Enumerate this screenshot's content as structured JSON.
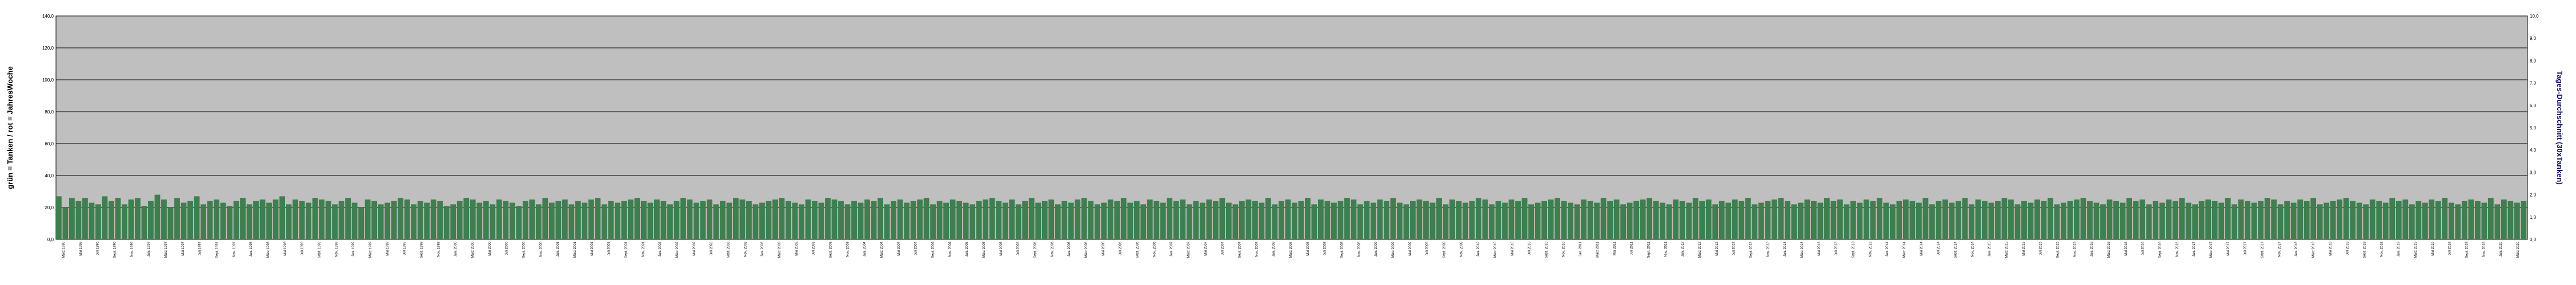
{
  "chart_data": {
    "type": "bar",
    "ylabel": "grün = Tanken / rot = JahresWoche",
    "y2label": "Tages-Durchschnitt (30xTanken)",
    "ylim": [
      0,
      140
    ],
    "y_ticks": [
      "0,0",
      "20,0",
      "40,0",
      "60,0",
      "80,0",
      "100,0",
      "120,0",
      "140,0"
    ],
    "y2lim": [
      0,
      10
    ],
    "y2_ticks": [
      "0,0",
      "1,0",
      "2,0",
      "3,0",
      "4,0",
      "5,0",
      "6,0",
      "7,0",
      "8,0",
      "9,0",
      "10,0"
    ],
    "grid": true,
    "colors": {
      "plot_bg": "#bfbfbf",
      "bars": "#3f7f4f",
      "weekly_line": "#d02010",
      "average_line": "#0a0a5a",
      "grid": "#000000"
    },
    "x_ticks": [
      "März 1996",
      "Mai 1996",
      "Juli 1996",
      "Sept. 1996",
      "Nov. 1996",
      "Jan. 1997",
      "März 1997",
      "Mai 1997",
      "Juli 1997",
      "Sept. 1997",
      "Nov. 1997",
      "Jan. 1998",
      "März 1998",
      "Mai 1998",
      "Juli 1998",
      "Sept. 1998",
      "Nov. 1998",
      "Jan. 1999",
      "März 1999",
      "Mai 1999",
      "Juli 1999",
      "Sept. 1999",
      "Nov. 1999",
      "Jan. 2000",
      "März 2000",
      "Mai 2000",
      "Juli 2000",
      "Sept. 2000",
      "Nov. 2000",
      "Jan. 2001",
      "März 2001",
      "Mai 2001",
      "Juli 2001",
      "Sept. 2001",
      "Nov. 2001",
      "Jan. 2002",
      "März 2002",
      "Mai 2002",
      "Juli 2002",
      "Sept. 2002",
      "Nov. 2002",
      "Jan. 2003",
      "März 2003",
      "Mai 2003",
      "Juli 2003",
      "Sept. 2003",
      "Nov. 2003",
      "Jan. 2004",
      "März 2004",
      "Mai 2004",
      "Juli 2004",
      "Sept. 2004",
      "Nov. 2004",
      "Jan. 2005",
      "März 2005",
      "Mai 2005",
      "Juli 2005",
      "Sept. 2005",
      "Nov. 2005",
      "Jan. 2006",
      "März 2006",
      "Mai 2006",
      "Juli 2006",
      "Sept. 2006",
      "Nov. 2006",
      "Jan. 2007",
      "März 2007",
      "Mai 2007",
      "Juli 2007",
      "Sept. 2007",
      "Nov. 2007",
      "Jan. 2008",
      "März 2008",
      "Mai 2008",
      "Juli 2008",
      "Sept. 2008",
      "Nov. 2008",
      "Jan. 2009",
      "März 2009",
      "Mai 2009",
      "Juli 2009",
      "Sept. 2009",
      "Nov. 2009",
      "Jan. 2010",
      "März 2010",
      "Mai 2010",
      "Juli 2010",
      "Sept. 2010",
      "Nov. 2010",
      "Jan. 2011",
      "März 2011",
      "Mai 2011",
      "Juli 2011",
      "Sept. 2011",
      "Nov. 2011",
      "Jan. 2012",
      "März 2012",
      "Mai 2012",
      "Juli 2012",
      "Sept. 2012",
      "Nov. 2012",
      "Jan. 2013",
      "März 2013",
      "Mai 2013",
      "Juli 2013",
      "Sept. 2013",
      "Nov. 2013",
      "Jan. 2014",
      "März 2014",
      "Mai 2014",
      "Juli 2014",
      "Sept. 2014",
      "Nov. 2014",
      "Jan. 2015",
      "März 2015",
      "Mai 2015",
      "Juli 2015",
      "Sept. 2015",
      "Nov. 2015",
      "Jan. 2016",
      "März 2016",
      "Mai 2016",
      "Juli 2016",
      "Sept. 2016",
      "Nov. 2016",
      "Jan. 2017",
      "März 2017",
      "Mai 2017",
      "Juli 2017",
      "Sept. 2017",
      "Nov. 2017",
      "Jan. 2018",
      "März 2018",
      "Mai 2018",
      "Juli 2018",
      "Sept. 2018",
      "Nov. 2018",
      "Jan. 2019",
      "März 2019",
      "Mai 2019",
      "Juli 2019",
      "Sept. 2019",
      "Nov. 2019",
      "Jan. 2020",
      "März 2020"
    ],
    "series": [
      {
        "kind": "bar",
        "axis": "left",
        "values": [
          27,
          20,
          26,
          24,
          26,
          23,
          22,
          27,
          24,
          26,
          22,
          25,
          26,
          21,
          24,
          28,
          25,
          20,
          26,
          23,
          24,
          27,
          22,
          24,
          25,
          23,
          21,
          24,
          26,
          22,
          24,
          25,
          23,
          25,
          27,
          22,
          25,
          24,
          23,
          26,
          25,
          24,
          22,
          24,
          26,
          23,
          20,
          25,
          24,
          22,
          23,
          24,
          26,
          25,
          22,
          24,
          23,
          25,
          24,
          21,
          22,
          24,
          26,
          25,
          23,
          24,
          22,
          25,
          24,
          23,
          21,
          24,
          25,
          22,
          26,
          23,
          24,
          25,
          22,
          24,
          23,
          25,
          26,
          22,
          24,
          23,
          24,
          25,
          26,
          24,
          23,
          25,
          24,
          22,
          24,
          26,
          25,
          23,
          24,
          25,
          22,
          24,
          23,
          26,
          25,
          24,
          22,
          23,
          24,
          25,
          26,
          24,
          23,
          22,
          25,
          24,
          23,
          26,
          25,
          24,
          22,
          24,
          23,
          25,
          24,
          26,
          22,
          24,
          25,
          23,
          24,
          25,
          26,
          22,
          24,
          23,
          25,
          24,
          23,
          22,
          24,
          25,
          26,
          24,
          23,
          25,
          22,
          24,
          26,
          23,
          24,
          25,
          22,
          24,
          23,
          25,
          26,
          24,
          22,
          23,
          25,
          24,
          26,
          23,
          24,
          22,
          25,
          24,
          23,
          26,
          24,
          25,
          22,
          24,
          23,
          25,
          24,
          26,
          23,
          22,
          24,
          25,
          24,
          23,
          26,
          22,
          24,
          25,
          23,
          24,
          26,
          22,
          25,
          24,
          23,
          24,
          26,
          25,
          22,
          24,
          23,
          25,
          24,
          26,
          23,
          22,
          24,
          25,
          24,
          23,
          26,
          22,
          25,
          24,
          23,
          24,
          26,
          25,
          22,
          24,
          23,
          25,
          24,
          26,
          22,
          23,
          24,
          25,
          26,
          24,
          23,
          22,
          25,
          24,
          23,
          26,
          24,
          25,
          22,
          23,
          24,
          25,
          26,
          24,
          23,
          22,
          25,
          24,
          23,
          26,
          24,
          25,
          22,
          24,
          23,
          25,
          24,
          26,
          22,
          23,
          24,
          25,
          26,
          24,
          22,
          23,
          25,
          24,
          23,
          26,
          24,
          25,
          22,
          24,
          23,
          25,
          24,
          26,
          23,
          22,
          24,
          25,
          24,
          23,
          26,
          22,
          24,
          25,
          23,
          24,
          26,
          22,
          25,
          24,
          23,
          24,
          26,
          25,
          22,
          24,
          23,
          25,
          24,
          26,
          22,
          23,
          24,
          25,
          26,
          24,
          23,
          22,
          25,
          24,
          23,
          26,
          24,
          25,
          22,
          24,
          23,
          25,
          24,
          26,
          23,
          22,
          24,
          25,
          24,
          23,
          26,
          22,
          25,
          24,
          23,
          24,
          26,
          25,
          22,
          24,
          23,
          25,
          24,
          26,
          22,
          23,
          24,
          25,
          26,
          24,
          23,
          22,
          25,
          24,
          23,
          26,
          24,
          25,
          22,
          24,
          23,
          25,
          24,
          26,
          23,
          22,
          24,
          25,
          24,
          23,
          26,
          22,
          25,
          24,
          23,
          24
        ]
      },
      {
        "kind": "line",
        "name": "",
        "axis": "left",
        "values": []
      },
      {
        "kind": "line",
        "name": "",
        "axis": "right",
        "values": []
      }
    ]
  }
}
